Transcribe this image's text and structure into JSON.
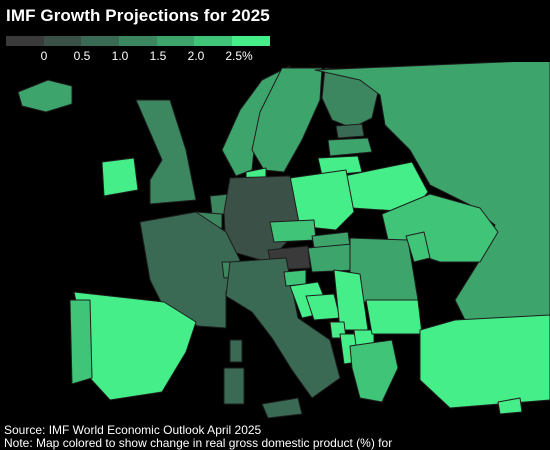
{
  "title": "IMF Growth Projections for 2025",
  "legend": {
    "colors": [
      "#3a3a3a",
      "#3b5148",
      "#3b6a54",
      "#3c8760",
      "#3da56c",
      "#3fc478",
      "#45ee88"
    ],
    "ticks": [
      "0",
      "0.5",
      "1.0",
      "1.5",
      "2.0",
      "2.5%"
    ]
  },
  "map_regions": [
    {
      "name": "Norway",
      "value": 1.5
    },
    {
      "name": "Sweden",
      "value": 1.5
    },
    {
      "name": "Finland",
      "value": 1.0
    },
    {
      "name": "Iceland",
      "value": 1.5
    },
    {
      "name": "Ireland",
      "value": 2.5
    },
    {
      "name": "United Kingdom",
      "value": 1.0
    },
    {
      "name": "Denmark",
      "value": 2.5
    },
    {
      "name": "Estonia",
      "value": 0.5
    },
    {
      "name": "Latvia",
      "value": 1.5
    },
    {
      "name": "Lithuania",
      "value": 2.5
    },
    {
      "name": "Russia",
      "value": 1.5
    },
    {
      "name": "Belarus",
      "value": 2.5
    },
    {
      "name": "Ukraine",
      "value": 2.0
    },
    {
      "name": "Poland",
      "value": 3.0
    },
    {
      "name": "Netherlands",
      "value": 1.0
    },
    {
      "name": "Belgium",
      "value": 1.0
    },
    {
      "name": "Germany",
      "value": 0.0
    },
    {
      "name": "France",
      "value": 0.5
    },
    {
      "name": "Switzerland",
      "value": 1.0
    },
    {
      "name": "Austria",
      "value": -0.3
    },
    {
      "name": "Czech Republic",
      "value": 2.0
    },
    {
      "name": "Slovakia",
      "value": 1.5
    },
    {
      "name": "Hungary",
      "value": 1.5
    },
    {
      "name": "Romania",
      "value": 1.5
    },
    {
      "name": "Moldova",
      "value": 2.0
    },
    {
      "name": "Italy",
      "value": 0.5
    },
    {
      "name": "Slovenia",
      "value": 2.0
    },
    {
      "name": "Croatia",
      "value": 2.5
    },
    {
      "name": "Bosnia",
      "value": 2.5
    },
    {
      "name": "Serbia",
      "value": 2.5
    },
    {
      "name": "Montenegro",
      "value": 2.5
    },
    {
      "name": "Albania",
      "value": 3.0
    },
    {
      "name": "North Macedonia",
      "value": 2.5
    },
    {
      "name": "Bulgaria",
      "value": 2.5
    },
    {
      "name": "Greece",
      "value": 2.0
    },
    {
      "name": "Turkey",
      "value": 2.5
    },
    {
      "name": "Spain",
      "value": 2.5
    },
    {
      "name": "Portugal",
      "value": 2.0
    },
    {
      "name": "Corsica",
      "value": 0.5
    },
    {
      "name": "Sardinia",
      "value": 0.5
    },
    {
      "name": "Sicily",
      "value": 0.5
    },
    {
      "name": "Cyprus",
      "value": 2.5
    }
  ],
  "source": "Source: IMF World Economic Outlook April 2025",
  "note": "Note: Map colored to show change in real gross domestic product (%) for"
}
